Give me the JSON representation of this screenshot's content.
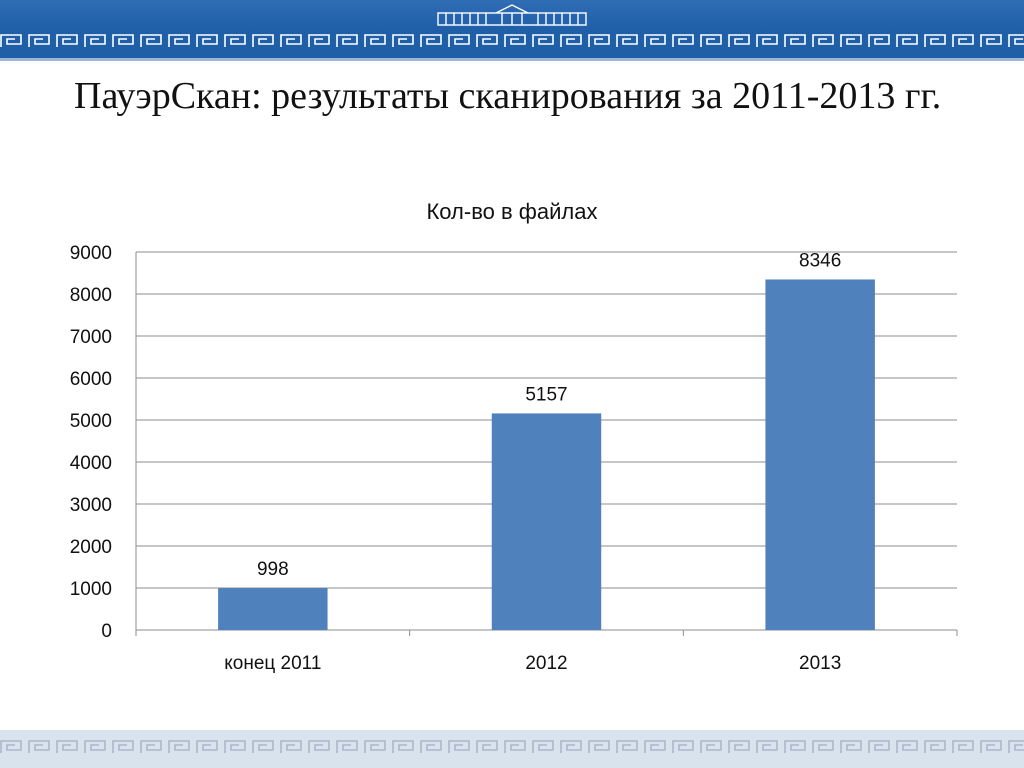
{
  "slide": {
    "title": "ПауэрСкан: результаты сканирования за 2011-2013 гг."
  },
  "colors": {
    "header": "#1f5fa8",
    "bar": "#4f81bd",
    "grid": "#8c8c8c",
    "footer": "#d9e3ee"
  },
  "chart_data": {
    "type": "bar",
    "title": "Кол-во в файлах",
    "categories": [
      "конец 2011",
      "2012",
      "2013"
    ],
    "values": [
      998,
      5157,
      8346
    ],
    "data_labels": [
      "998",
      "5157",
      "8346"
    ],
    "ylim": [
      0,
      9000
    ],
    "yticks": [
      "0",
      "1000",
      "2000",
      "3000",
      "4000",
      "5000",
      "6000",
      "7000",
      "8000",
      "9000"
    ],
    "grid": true,
    "legend": "none",
    "xlabel": "",
    "ylabel": ""
  }
}
